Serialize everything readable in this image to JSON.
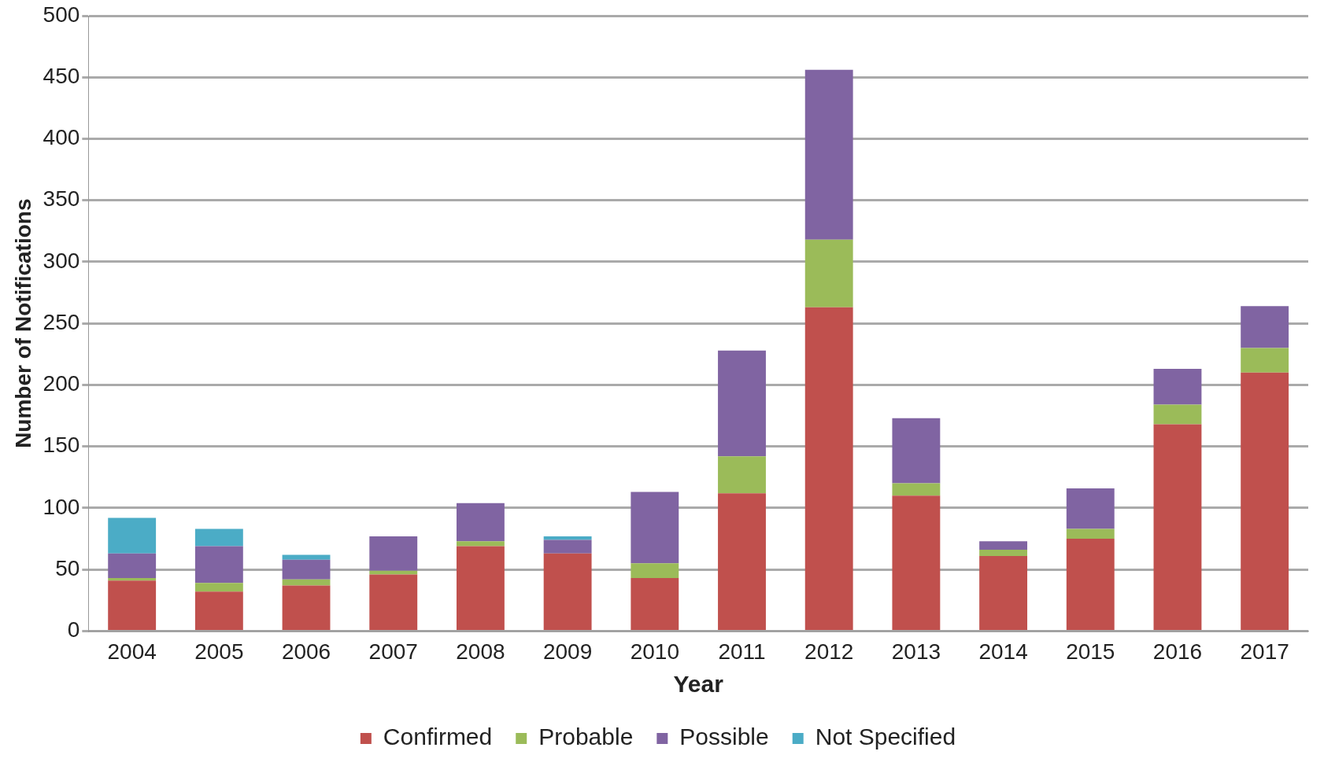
{
  "chart_data": {
    "type": "bar",
    "stacked": true,
    "xlabel": "Year",
    "ylabel": "Number of Notifications",
    "categories": [
      "2004",
      "2005",
      "2006",
      "2007",
      "2008",
      "2009",
      "2010",
      "2011",
      "2012",
      "2013",
      "2014",
      "2015",
      "2016",
      "2017"
    ],
    "series": [
      {
        "name": "Confirmed",
        "color": "#c0504d",
        "values": [
          41,
          32,
          37,
          46,
          69,
          63,
          43,
          112,
          263,
          110,
          61,
          75,
          168,
          210
        ]
      },
      {
        "name": "Probable",
        "color": "#9bbb59",
        "values": [
          2,
          7,
          5,
          3,
          4,
          0,
          12,
          30,
          55,
          10,
          5,
          8,
          16,
          20
        ]
      },
      {
        "name": "Possible",
        "color": "#8064a2",
        "values": [
          20,
          30,
          16,
          28,
          31,
          11,
          58,
          86,
          138,
          53,
          7,
          33,
          29,
          34
        ]
      },
      {
        "name": "Not Specified",
        "color": "#4bacc6",
        "values": [
          29,
          14,
          4,
          0,
          0,
          3,
          0,
          0,
          0,
          0,
          0,
          0,
          0,
          0
        ]
      }
    ],
    "ylim": [
      0,
      500
    ],
    "yticks": [
      0,
      50,
      100,
      150,
      200,
      250,
      300,
      350,
      400,
      450,
      500
    ],
    "grid": "y",
    "legend": "bottom"
  }
}
